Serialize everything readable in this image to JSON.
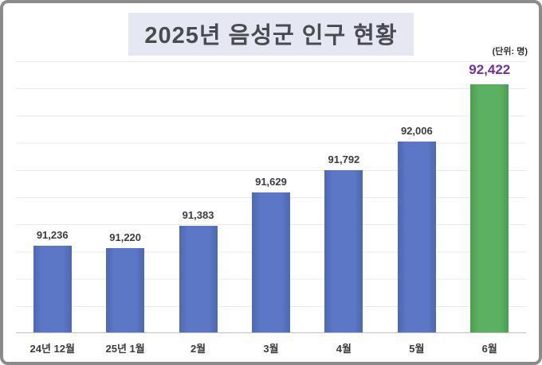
{
  "title": "2025년 음성군 인구 현황",
  "unit_label": "(단위: 명)",
  "chart_data": {
    "type": "bar",
    "title": "2025년 음성군 인구 현황",
    "unit": "(단위: 명)",
    "categories": [
      "24년 12월",
      "25년 1월",
      "2월",
      "3월",
      "4월",
      "5월",
      "6월"
    ],
    "values": [
      91236,
      91220,
      91383,
      91629,
      91792,
      92006,
      92422
    ],
    "value_labels": [
      "91,236",
      "91,220",
      "91,383",
      "91,629",
      "91,792",
      "92,006",
      "92,422"
    ],
    "highlight_index": 6,
    "ylim": [
      90600,
      92600
    ],
    "gridline_interval": 200,
    "grid": true,
    "legend": "none",
    "colors": {
      "bar_default": "#5B77C6",
      "bar_highlight": "#5CB062",
      "value_label_default": "#3B3B3B",
      "value_label_highlight": "#7030A0",
      "title_background": "#E5E8F3",
      "title_text": "#4A4A51",
      "gridline": "#E9E9EC",
      "axis_line": "#BFBFBF"
    }
  }
}
